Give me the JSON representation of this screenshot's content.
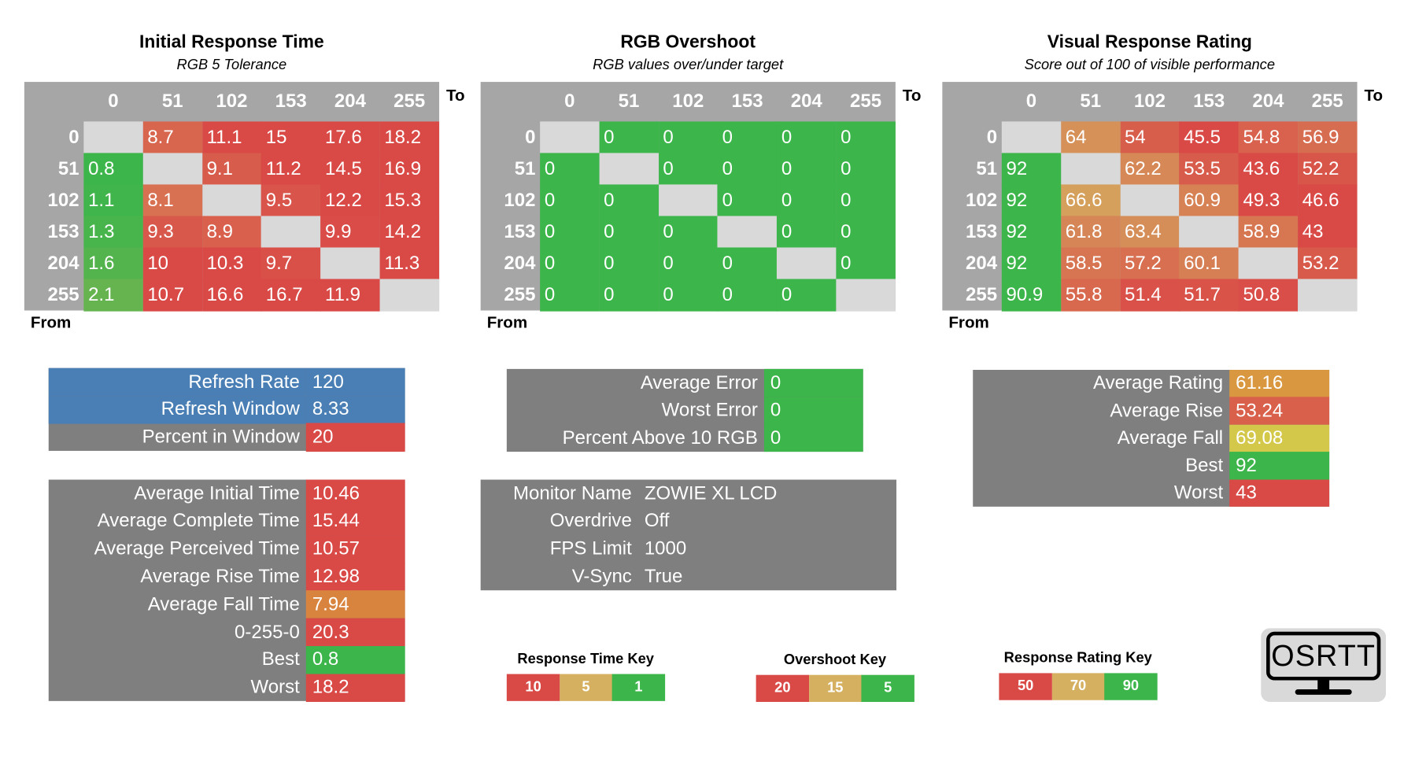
{
  "matrices": [
    {
      "title": "Initial Response Time",
      "subtitle": "RGB 5 Tolerance",
      "to": "To",
      "from": "From",
      "columns": [
        0,
        51,
        102,
        153,
        204,
        255
      ],
      "rows": [
        0,
        51,
        102,
        153,
        204,
        255
      ],
      "cells": [
        [
          null,
          8.7,
          11.1,
          15,
          17.6,
          18.2
        ],
        [
          0.8,
          null,
          9.1,
          11.2,
          14.5,
          16.9
        ],
        [
          1.1,
          8.1,
          null,
          9.5,
          12.2,
          15.3
        ],
        [
          1.3,
          9.3,
          8.9,
          null,
          9.9,
          14.2
        ],
        [
          1.6,
          10,
          10.3,
          9.7,
          null,
          11.3
        ],
        [
          2.1,
          10.7,
          16.6,
          16.7,
          11.9,
          null
        ]
      ]
    },
    {
      "title": "RGB Overshoot",
      "subtitle": "RGB values over/under target",
      "to": "To",
      "from": "From",
      "columns": [
        0,
        51,
        102,
        153,
        204,
        255
      ],
      "rows": [
        0,
        51,
        102,
        153,
        204,
        255
      ],
      "cells": [
        [
          null,
          0,
          0,
          0,
          0,
          0
        ],
        [
          0,
          null,
          0,
          0,
          0,
          0
        ],
        [
          0,
          0,
          null,
          0,
          0,
          0
        ],
        [
          0,
          0,
          0,
          null,
          0,
          0
        ],
        [
          0,
          0,
          0,
          0,
          null,
          0
        ],
        [
          0,
          0,
          0,
          0,
          0,
          null
        ]
      ]
    },
    {
      "title": "Visual Response Rating",
      "subtitle": "Score out of 100 of visible performance",
      "to": "To",
      "from": "From",
      "columns": [
        0,
        51,
        102,
        153,
        204,
        255
      ],
      "rows": [
        0,
        51,
        102,
        153,
        204,
        255
      ],
      "cells": [
        [
          null,
          64,
          54,
          45.5,
          54.8,
          56.9
        ],
        [
          92,
          null,
          62.2,
          53.5,
          43.6,
          52.2
        ],
        [
          92,
          66.6,
          null,
          60.9,
          49.3,
          46.6
        ],
        [
          92,
          61.8,
          63.4,
          null,
          58.9,
          43
        ],
        [
          92,
          58.5,
          57.2,
          60.1,
          null,
          53.2
        ],
        [
          90.9,
          55.8,
          51.4,
          51.7,
          50.8,
          null
        ]
      ]
    }
  ],
  "stats": [
    {
      "color": "#7f7f7f",
      "rows": [
        {
          "label": "Refresh Rate",
          "value": 120,
          "label_color": "#4a7fb5",
          "value_color": "#4a7fb5"
        },
        {
          "label": "Refresh Window",
          "value": 8.33,
          "label_color": "#4a7fb5",
          "value_color": "#4a7fb5"
        },
        {
          "label": "Percent in Window",
          "value": 20,
          "value_color": "#d94a47"
        }
      ]
    },
    {
      "color": "#7f7f7f",
      "rows": [
        {
          "label": "Average Initial Time",
          "value": 10.46,
          "value_color": "#d94a47"
        },
        {
          "label": "Average Complete Time",
          "value": 15.44,
          "value_color": "#d94a47"
        },
        {
          "label": "Average Perceived Time",
          "value": 10.57,
          "value_color": "#d94a47"
        },
        {
          "label": "Average Rise Time",
          "value": 12.98,
          "value_color": "#d94a47"
        },
        {
          "label": "Average Fall Time",
          "value": 7.94,
          "value_color": "#d8843f"
        },
        {
          "label": "0-255-0",
          "value": 20.3,
          "value_color": "#d94a47"
        },
        {
          "label": "Best",
          "value": 0.8,
          "value_color": "#3cb54a"
        },
        {
          "label": "Worst",
          "value": 18.2,
          "value_color": "#d94a47"
        }
      ]
    },
    {
      "color": "#7f7f7f",
      "rows": [
        {
          "label": "Average Error",
          "value": 0,
          "value_color": "#3cb54a"
        },
        {
          "label": "Worst Error",
          "value": 0,
          "value_color": "#3cb54a"
        },
        {
          "label": "Percent Above 10 RGB",
          "value": 0,
          "value_color": "#3cb54a"
        }
      ]
    },
    {
      "color": "#7f7f7f",
      "rows": [
        {
          "label": "Monitor Name",
          "value": "ZOWIE XL LCD"
        },
        {
          "label": "Overdrive",
          "value": "Off"
        },
        {
          "label": "FPS Limit",
          "value": 1000
        },
        {
          "label": "V-Sync",
          "value": "True"
        }
      ]
    },
    {
      "color": "#7f7f7f",
      "rows": [
        {
          "label": "Average Rating",
          "value": 61.16,
          "value_color": "#d9983f"
        },
        {
          "label": "Average Rise",
          "value": 53.24,
          "value_color": "#d9604a"
        },
        {
          "label": "Average Fall",
          "value": 69.08,
          "value_color": "#d4c84a"
        },
        {
          "label": "Best",
          "value": 92,
          "value_color": "#3cb54a"
        },
        {
          "label": "Worst",
          "value": 43,
          "value_color": "#d94a47"
        }
      ]
    }
  ],
  "keys": [
    {
      "title": "Response Time Key",
      "values": [
        10,
        5,
        1
      ],
      "colors": [
        "#d94a47",
        "#d4b060",
        "#3cb54a"
      ]
    },
    {
      "title": "Overshoot Key",
      "values": [
        20,
        15,
        5
      ],
      "colors": [
        "#d94a47",
        "#d4b060",
        "#3cb54a"
      ]
    },
    {
      "title": "Response Rating Key",
      "values": [
        50,
        70,
        90
      ],
      "colors": [
        "#d94a47",
        "#d4b060",
        "#3cb54a"
      ]
    }
  ],
  "logo": "OSRTT"
}
